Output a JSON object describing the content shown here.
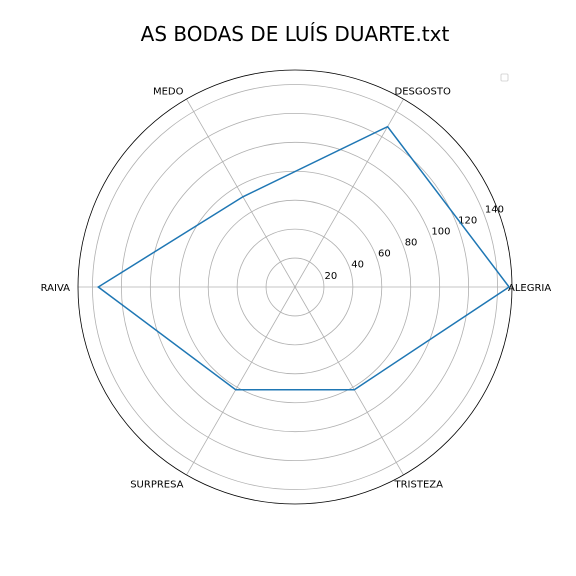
{
  "chart_data": {
    "type": "radar",
    "title": "AS BODAS DE LUÍS DUARTE.txt",
    "categories": [
      "ALEGRIA",
      "DESGOSTO",
      "MEDO",
      "RAIVA",
      "SURPRESA",
      "TRISTEZA"
    ],
    "series": [
      {
        "values": [
          148,
          128,
          72,
          136,
          82,
          82
        ],
        "color": "#1f77b4"
      }
    ],
    "r_ticks": [
      20,
      40,
      60,
      80,
      100,
      120,
      140
    ],
    "rlim": [
      0,
      150
    ],
    "grid": true,
    "legend": "top-right"
  }
}
